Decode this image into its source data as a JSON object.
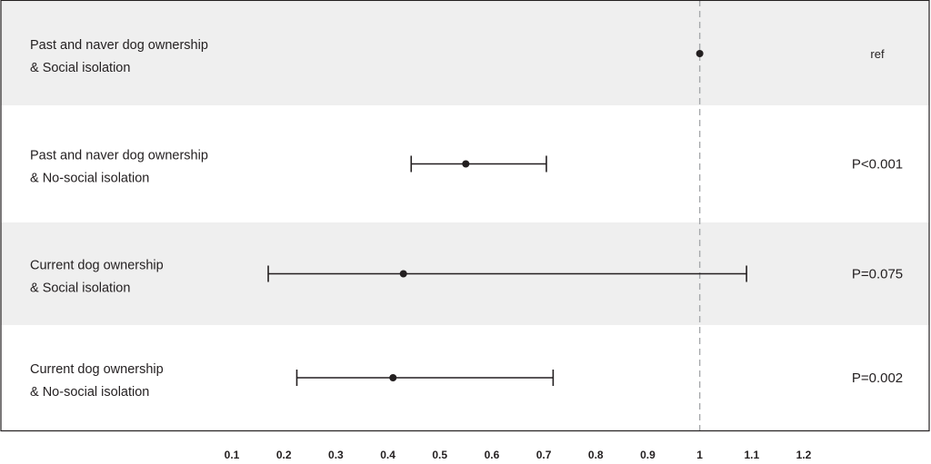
{
  "chart_data": {
    "type": "forest",
    "reference_line": 1,
    "xlim": [
      0.1,
      1.2
    ],
    "xticks": [
      "0.1",
      "0.2",
      "0.3",
      "0.4",
      "0.5",
      "0.6",
      "0.7",
      "0.8",
      "0.9",
      "1",
      "1.1",
      "1.2"
    ],
    "rows": [
      {
        "label_line1": "Past and naver dog ownership",
        "label_line2": "& Social isolation",
        "estimate": 1.0,
        "ci_low": null,
        "ci_high": null,
        "p_text": "ref",
        "shaded": true
      },
      {
        "label_line1": "Past and naver dog ownership",
        "label_line2": "& No-social isolation",
        "estimate": 0.55,
        "ci_low": 0.445,
        "ci_high": 0.705,
        "p_text": "P<0.001",
        "shaded": false
      },
      {
        "label_line1": "Current dog ownership",
        "label_line2": "&  Social isolation",
        "estimate": 0.43,
        "ci_low": 0.17,
        "ci_high": 1.09,
        "p_text": "P=0.075",
        "shaded": true
      },
      {
        "label_line1": "Current dog ownership",
        "label_line2": "& No-social isolation",
        "estimate": 0.41,
        "ci_low": 0.225,
        "ci_high": 0.718,
        "p_text": "P=0.002",
        "shaded": false
      }
    ],
    "colors": {
      "shade": "#efefef",
      "ink": "#231f20",
      "refline": "#a7a9ac",
      "frame": "#231f20"
    }
  }
}
